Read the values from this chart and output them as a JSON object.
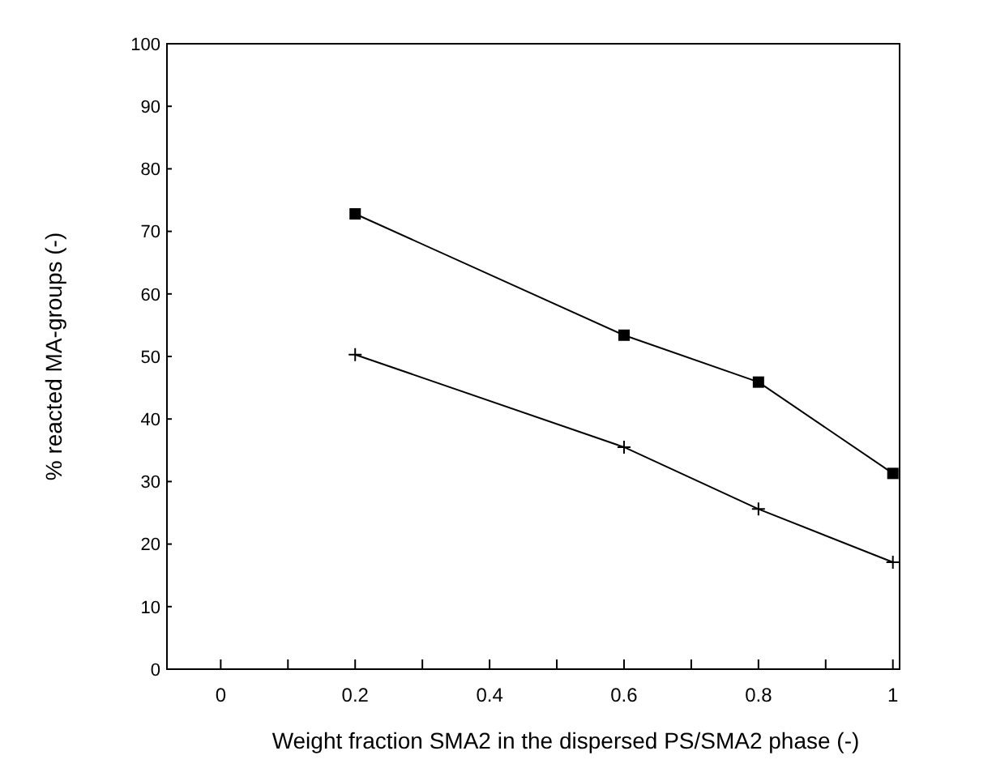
{
  "chart_data": {
    "type": "line",
    "xlabel": "Weight fraction SMA2 in the dispersed PS/SMA2 phase (-)",
    "ylabel": "% reacted MA-groups (-)",
    "xlim": [
      -0.08,
      1.01
    ],
    "xticks": [
      0,
      {
        "value": 0.1,
        "label": null
      },
      0.2,
      {
        "value": 0.3,
        "label": null
      },
      0.4,
      {
        "value": 0.5,
        "label": null
      },
      0.6,
      {
        "value": 0.7,
        "label": null
      },
      0.8,
      {
        "value": 0.9,
        "label": null
      },
      1
    ],
    "ylim": [
      0,
      100
    ],
    "yticks": [
      0,
      10,
      20,
      30,
      40,
      50,
      60,
      70,
      80,
      90,
      100
    ],
    "x": [
      0.2,
      0.6,
      0.8,
      1
    ],
    "series": [
      {
        "color": "#000000",
        "marker": "square",
        "values": [
          72.8,
          53.4,
          45.9,
          31.3
        ]
      },
      {
        "color": "#000000",
        "marker": "cross",
        "values": [
          50.3,
          35.5,
          25.6,
          17.1
        ]
      }
    ]
  }
}
